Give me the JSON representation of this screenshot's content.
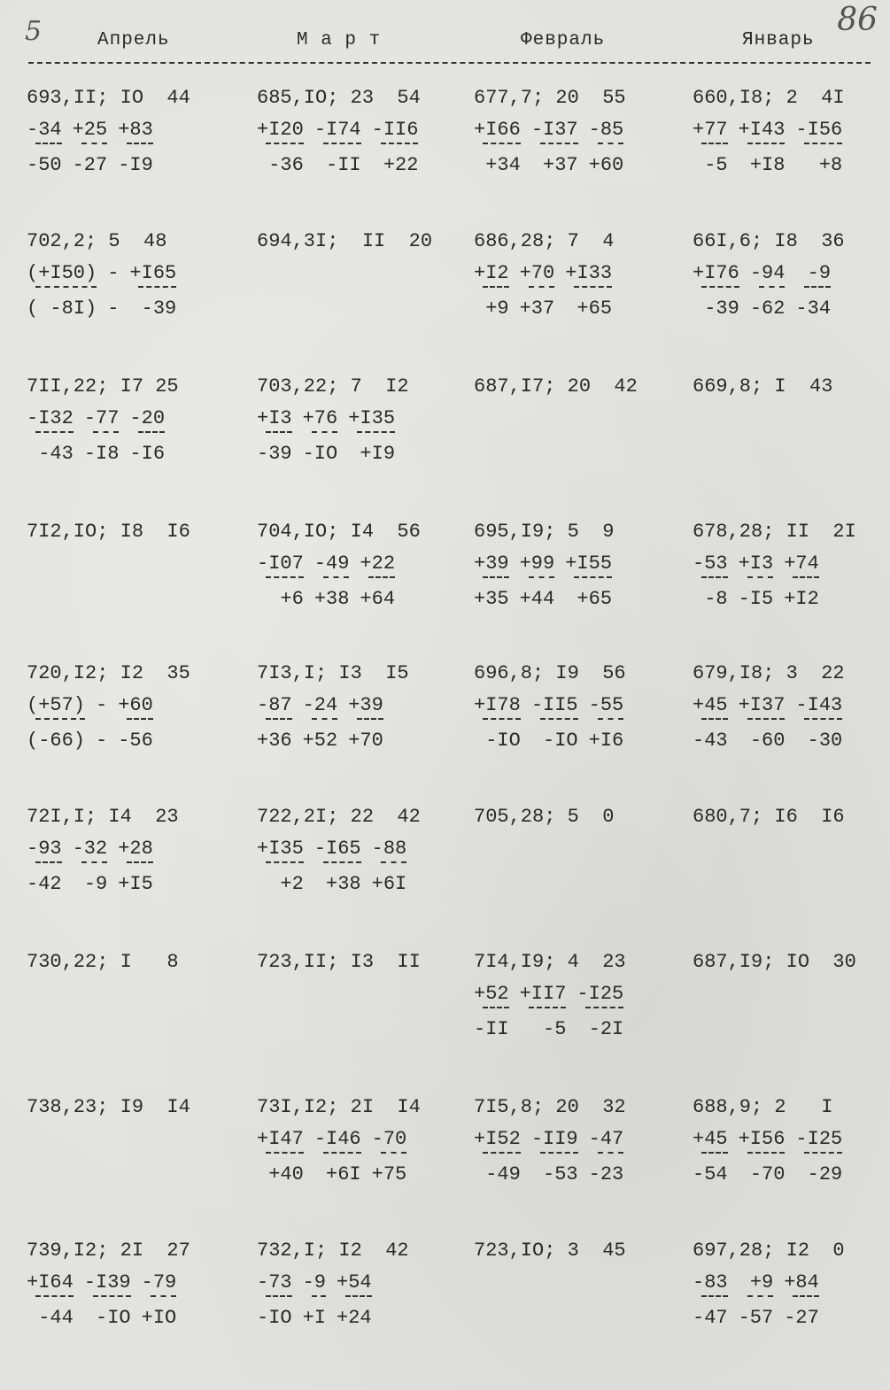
{
  "page_number": "5",
  "folio_number": "86",
  "months": [
    "Апрель",
    "М а р т",
    "Февраль",
    "Январь"
  ],
  "rows": [
    [
      {
        "title": "693,II; IO  44",
        "fractions": [
          {
            "num": "-34",
            "den": "-50"
          },
          {
            "num": "+25",
            "den": "-27"
          },
          {
            "num": "+83",
            "den": "-I9"
          }
        ]
      },
      {
        "title": "685,IO; 23  54",
        "fractions": [
          {
            "num": "+I20",
            "den": "-36"
          },
          {
            "num": "-I74",
            "den": "-II"
          },
          {
            "num": "-II6",
            "den": "+22"
          }
        ]
      },
      {
        "title": "677,7; 20  55",
        "fractions": [
          {
            "num": "+I66",
            "den": "+34"
          },
          {
            "num": "-I37",
            "den": "+37"
          },
          {
            "num": "-85",
            "den": "+60"
          }
        ]
      },
      {
        "title": "660,I8; 2  4I",
        "fractions": [
          {
            "num": "+77",
            "den": "-5"
          },
          {
            "num": "+I43",
            "den": "+I8"
          },
          {
            "num": "-I56",
            "den": "+8"
          }
        ]
      }
    ],
    [
      {
        "title": "702,2; 5  48",
        "fractions": [
          {
            "num": "(+I50)",
            "den": "( -8I)"
          },
          {
            "num": "-",
            "den": "-",
            "nobar": true
          },
          {
            "num": "+I65",
            "den": "-39"
          }
        ]
      },
      {
        "title": "694,3I;  II  20",
        "fractions": []
      },
      {
        "title": "686,28; 7  4",
        "fractions": [
          {
            "num": "+I2",
            "den": "+9"
          },
          {
            "num": "+70",
            "den": "+37"
          },
          {
            "num": "+I33",
            "den": "+65"
          }
        ]
      },
      {
        "title": "66I,6; I8  36",
        "fractions": [
          {
            "num": "+I76",
            "den": "-39"
          },
          {
            "num": "-94",
            "den": "-62"
          },
          {
            "num": "-9",
            "den": "-34"
          }
        ]
      }
    ],
    [
      {
        "title": "7II,22; I7 25",
        "fractions": [
          {
            "num": "-I32",
            "den": "-43"
          },
          {
            "num": "-77",
            "den": "-I8"
          },
          {
            "num": "-20",
            "den": "-I6"
          }
        ]
      },
      {
        "title": "703,22; 7  I2",
        "fractions": [
          {
            "num": "+I3",
            "den": "-39"
          },
          {
            "num": "+76",
            "den": "-IO"
          },
          {
            "num": "+I35",
            "den": "+I9"
          }
        ]
      },
      {
        "title": "687,I7; 20  42",
        "fractions": []
      },
      {
        "title": "669,8; I  43",
        "fractions": []
      }
    ],
    [
      {
        "title": "7I2,IO; I8  I6",
        "fractions": []
      },
      {
        "title": "704,IO; I4  56",
        "fractions": [
          {
            "num": "-I07",
            "den": "+6"
          },
          {
            "num": "-49",
            "den": "+38"
          },
          {
            "num": "+22",
            "den": "+64"
          }
        ]
      },
      {
        "title": "695,I9; 5  9",
        "fractions": [
          {
            "num": "+39",
            "den": "+35"
          },
          {
            "num": "+99",
            "den": "+44"
          },
          {
            "num": "+I55",
            "den": "+65"
          }
        ]
      },
      {
        "title": "678,28; II  2I",
        "fractions": [
          {
            "num": "-53",
            "den": "-8"
          },
          {
            "num": "+I3",
            "den": "-I5"
          },
          {
            "num": "+74",
            "den": "+I2"
          }
        ]
      }
    ],
    [
      {
        "title": "720,I2; I2  35",
        "fractions": [
          {
            "num": "(+57)",
            "den": "(-66)"
          },
          {
            "num": "-",
            "den": "-",
            "nobar": true
          },
          {
            "num": "+60",
            "den": "-56"
          }
        ]
      },
      {
        "title": "7I3,I; I3  I5",
        "fractions": [
          {
            "num": "-87",
            "den": "+36"
          },
          {
            "num": "-24",
            "den": "+52"
          },
          {
            "num": "+39",
            "den": "+70"
          }
        ]
      },
      {
        "title": "696,8; I9  56",
        "fractions": [
          {
            "num": "+I78",
            "den": "-IO"
          },
          {
            "num": "-II5",
            "den": "-IO"
          },
          {
            "num": "-55",
            "den": "+I6"
          }
        ]
      },
      {
        "title": "679,I8; 3  22",
        "fractions": [
          {
            "num": "+45",
            "den": "-43"
          },
          {
            "num": "+I37",
            "den": "-60"
          },
          {
            "num": "-I43",
            "den": "-30"
          }
        ]
      }
    ],
    [
      {
        "title": "72I,I; I4  23",
        "fractions": [
          {
            "num": "-93",
            "den": "-42"
          },
          {
            "num": "-32",
            "den": "-9"
          },
          {
            "num": "+28",
            "den": "+I5"
          }
        ]
      },
      {
        "title": "722,2I; 22  42",
        "fractions": [
          {
            "num": "+I35",
            "den": "+2"
          },
          {
            "num": "-I65",
            "den": "+38"
          },
          {
            "num": "-88",
            "den": "+6I"
          }
        ]
      },
      {
        "title": "705,28; 5  0",
        "fractions": []
      },
      {
        "title": "680,7; I6  I6",
        "fractions": []
      }
    ],
    [
      {
        "title": "730,22; I   8",
        "fractions": []
      },
      {
        "title": "723,II; I3  II",
        "fractions": []
      },
      {
        "title": "7I4,I9; 4  23",
        "fractions": [
          {
            "num": "+52",
            "den": "-II"
          },
          {
            "num": "+II7",
            "den": "-5"
          },
          {
            "num": "-I25",
            "den": "-2I"
          }
        ]
      },
      {
        "title": "687,I9; IO  30",
        "fractions": []
      }
    ],
    [
      {
        "title": "738,23; I9  I4",
        "fractions": []
      },
      {
        "title": "73I,I2; 2I  I4",
        "fractions": [
          {
            "num": "+I47",
            "den": "+40"
          },
          {
            "num": "-I46",
            "den": "+6I"
          },
          {
            "num": "-70",
            "den": "+75"
          }
        ]
      },
      {
        "title": "7I5,8; 20  32",
        "fractions": [
          {
            "num": "+I52",
            "den": "-49"
          },
          {
            "num": "-II9",
            "den": "-53"
          },
          {
            "num": "-47",
            "den": "-23"
          }
        ]
      },
      {
        "title": "688,9; 2   I",
        "fractions": [
          {
            "num": "+45",
            "den": "-54"
          },
          {
            "num": "+I56",
            "den": "-70"
          },
          {
            "num": "-I25",
            "den": "-29"
          }
        ]
      }
    ],
    [
      {
        "title": "739,I2; 2I  27",
        "fractions": [
          {
            "num": "+I64",
            "den": "-44"
          },
          {
            "num": "-I39",
            "den": "-IO"
          },
          {
            "num": "-79",
            "den": "+IO"
          }
        ]
      },
      {
        "title": "732,I; I2  42",
        "fractions": [
          {
            "num": "-73",
            "den": "-IO"
          },
          {
            "num": "-9",
            "den": "+I"
          },
          {
            "num": "+54",
            "den": "+24"
          }
        ]
      },
      {
        "title": "723,IO; 3  45",
        "fractions": []
      },
      {
        "title": "697,28; I2  0",
        "fractions": [
          {
            "num": "-83",
            "den": "-47"
          },
          {
            "num": "+9",
            "den": "-57"
          },
          {
            "num": "+84",
            "den": "-27"
          }
        ]
      }
    ]
  ]
}
